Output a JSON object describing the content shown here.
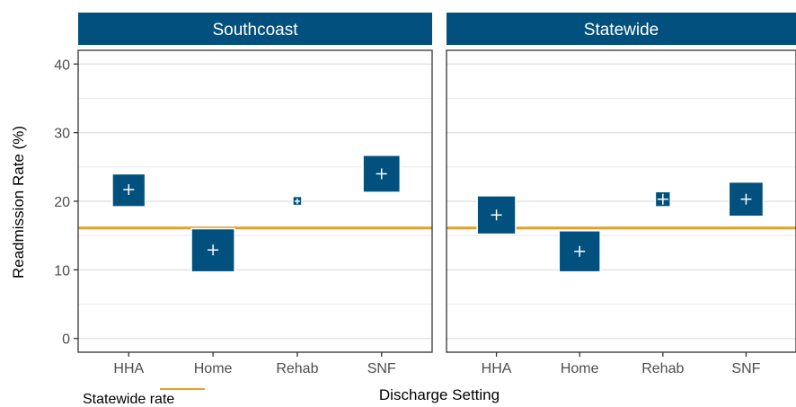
{
  "chart_data": {
    "type": "scatter",
    "xlabel": "Discharge Setting",
    "ylabel": "Readmission Rate (%)",
    "ylim": [
      -2,
      42
    ],
    "yticks": [
      0,
      10,
      20,
      30,
      40
    ],
    "categories": [
      "HHA",
      "Home",
      "Rehab",
      "SNF"
    ],
    "reference_line": {
      "label": "Statewide rate",
      "value": 16.1,
      "color": "#E69F26"
    },
    "point_color": "#02507D",
    "grid": true,
    "facets": [
      {
        "name": "Southcoast",
        "points": [
          {
            "category": "HHA",
            "value": 21.7,
            "ci_low": 19.2,
            "ci_high": 24.0
          },
          {
            "category": "Home",
            "value": 12.9,
            "ci_low": 9.7,
            "ci_high": 16.0
          },
          {
            "category": "Rehab",
            "value": 20.0,
            "ci_low": 19.6,
            "ci_high": 20.5
          },
          {
            "category": "SNF",
            "value": 24.0,
            "ci_low": 21.3,
            "ci_high": 26.7
          }
        ]
      },
      {
        "name": "Statewide",
        "points": [
          {
            "category": "HHA",
            "value": 18.0,
            "ci_low": 15.2,
            "ci_high": 20.8
          },
          {
            "category": "Home",
            "value": 12.7,
            "ci_low": 9.7,
            "ci_high": 15.7
          },
          {
            "category": "Rehab",
            "value": 20.3,
            "ci_low": 19.2,
            "ci_high": 21.4
          },
          {
            "category": "SNF",
            "value": 20.3,
            "ci_low": 17.8,
            "ci_high": 22.8
          }
        ]
      }
    ]
  }
}
